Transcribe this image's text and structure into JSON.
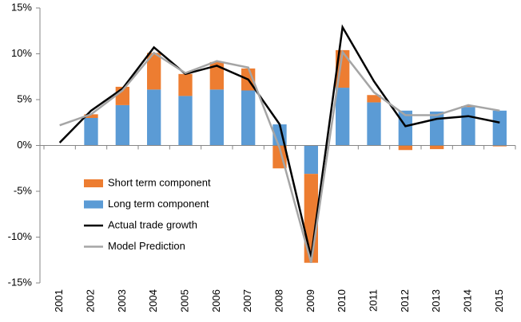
{
  "chart_data": {
    "type": "bar",
    "categories": [
      "2001",
      "2002",
      "2003",
      "2004",
      "2005",
      "2006",
      "2007",
      "2008",
      "2009",
      "2010",
      "2011",
      "2012",
      "2013",
      "2014",
      "2015"
    ],
    "series": [
      {
        "name": "Short term component",
        "type": "bar",
        "color": "#ed7d31",
        "values": [
          null,
          0.4,
          2.0,
          4.0,
          2.4,
          3.0,
          2.4,
          -2.5,
          -9.7,
          4.1,
          0.8,
          -0.5,
          -0.4,
          0.1,
          -0.1
        ]
      },
      {
        "name": "Long term component",
        "type": "bar",
        "color": "#5b9bd5",
        "values": [
          null,
          3.0,
          4.4,
          6.1,
          5.4,
          6.1,
          6.0,
          2.3,
          -3.1,
          6.3,
          4.7,
          3.8,
          3.7,
          4.2,
          3.8
        ]
      },
      {
        "name": "Actual trade growth",
        "type": "line",
        "color": "#000000",
        "values": [
          0.3,
          3.8,
          6.2,
          10.7,
          7.8,
          8.7,
          7.2,
          2.3,
          -12.2,
          12.9,
          7.0,
          2.1,
          2.9,
          3.2,
          2.5
        ]
      },
      {
        "name": "Model Prediction",
        "type": "line",
        "color": "#a5a5a5",
        "values": [
          2.2,
          3.4,
          6.0,
          10.1,
          7.9,
          9.2,
          8.5,
          -0.3,
          -12.8,
          10.2,
          5.8,
          3.3,
          3.3,
          4.4,
          3.8
        ]
      }
    ],
    "ylim": [
      -15,
      15
    ],
    "yticks": [
      {
        "value": -15,
        "label": "-15%"
      },
      {
        "value": -10,
        "label": "-10%"
      },
      {
        "value": -5,
        "label": "-5%"
      },
      {
        "value": 0,
        "label": "0%"
      },
      {
        "value": 5,
        "label": "5%"
      },
      {
        "value": 10,
        "label": "10%"
      },
      {
        "value": 15,
        "label": "15%"
      }
    ],
    "grid": false,
    "legend": "left"
  }
}
